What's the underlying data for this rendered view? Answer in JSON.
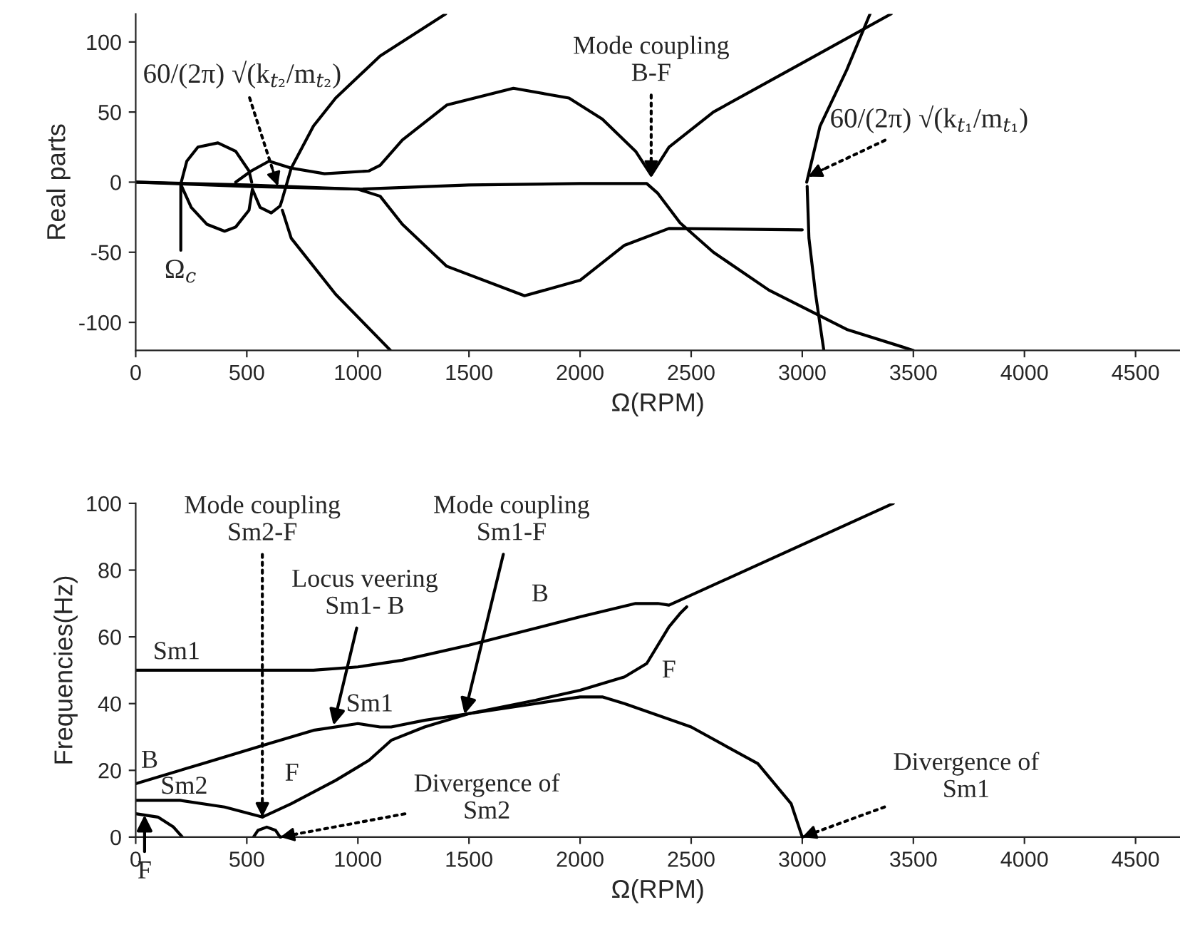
{
  "chart_data": [
    {
      "type": "line",
      "xlabel": "Ω(RPM)",
      "ylabel": "Real parts",
      "xlim": [
        0,
        4700
      ],
      "ylim": [
        -120,
        120
      ],
      "xticks": [
        0,
        500,
        1000,
        1500,
        2000,
        2500,
        3000,
        3500,
        4000,
        4500
      ],
      "yticks": [
        -100,
        -50,
        0,
        50,
        100
      ],
      "grid": false,
      "legend": false,
      "marker": "none",
      "line_style": "solid",
      "series": [
        {
          "color": "#000000",
          "x": [
            0,
            500,
            1000,
            1500,
            2000,
            2300,
            2350,
            2450,
            2600,
            2850,
            3200,
            3500
          ],
          "values": [
            0,
            -2,
            -5,
            -2,
            -1,
            -1,
            -8,
            -29,
            -50,
            -77,
            -105,
            -120
          ]
        },
        {
          "color": "#000000",
          "x": [
            0,
            500,
            1000,
            1100,
            1200,
            1400,
            1750,
            2000,
            2200,
            2400,
            3000
          ],
          "values": [
            0,
            -3,
            -5,
            -10,
            -30,
            -60,
            -81,
            -70,
            -45,
            -33,
            -34
          ]
        },
        {
          "color": "#000000",
          "x": [
            450,
            520,
            600,
            700,
            850,
            1050,
            1100,
            1200,
            1400,
            1700,
            1950,
            2100,
            2250,
            2320,
            2400,
            2600,
            3000,
            3400
          ],
          "values": [
            0,
            8,
            15,
            10,
            6,
            8,
            12,
            30,
            55,
            67,
            60,
            45,
            22,
            5,
            25,
            50,
            85,
            120
          ]
        },
        {
          "color": "#000000",
          "x": [
            205,
            230,
            280,
            370,
            450,
            510,
            522
          ],
          "values": [
            0,
            15,
            25,
            28,
            22,
            8,
            0
          ]
        },
        {
          "color": "#000000",
          "x": [
            207,
            250,
            320,
            400,
            450,
            510,
            525,
            560,
            610,
            650,
            660,
            700,
            800,
            900,
            1100,
            1395
          ],
          "values": [
            -3,
            -18,
            -30,
            -35,
            -32,
            -20,
            -5,
            -18,
            -22,
            -17,
            -12,
            10,
            40,
            60,
            90,
            120
          ]
        },
        {
          "color": "#000000",
          "x": [
            660,
            700,
            900,
            1147
          ],
          "values": [
            -20,
            -40,
            -80,
            -120
          ]
        },
        {
          "color": "#000000",
          "x": [
            3020,
            3080,
            3200,
            3305
          ],
          "values": [
            0,
            40,
            80,
            120
          ]
        },
        {
          "color": "#000000",
          "x": [
            3022,
            3030,
            3060,
            3097
          ],
          "values": [
            -3,
            -40,
            -80,
            -120
          ]
        }
      ],
      "annotations": [
        {
          "text": "60/(2π) √(k$_{t₂}$/m$_{t₂}$)",
          "x": 640,
          "y": -2.8
        },
        {
          "text": "Mode coupling\nB-F",
          "x": 2320,
          "y": 5
        },
        {
          "text": "60/(2π) √(k$_{t₁}$/m$_{t₁}$)",
          "x": 3026,
          "y": 4
        },
        {
          "text": "Ω$_{c}$",
          "x": 203,
          "y": -0.8
        }
      ]
    },
    {
      "type": "line",
      "xlabel": "Ω(RPM)",
      "ylabel": "Frequencies(Hz)",
      "xlim": [
        0,
        4700
      ],
      "ylim": [
        0,
        100
      ],
      "xticks": [
        0,
        500,
        1000,
        1500,
        2000,
        2500,
        3000,
        3500,
        4000,
        4500
      ],
      "yticks": [
        0,
        20,
        40,
        60,
        80,
        100
      ],
      "grid": false,
      "legend": false,
      "marker": "none",
      "line_style": "solid",
      "series": [
        {
          "color": "#000000",
          "x": [
            0,
            500,
            800,
            1000,
            1200,
            1500,
            2000,
            2250,
            2350,
            2400,
            2450,
            3410
          ],
          "values": [
            50,
            50,
            50,
            51,
            53,
            57.5,
            66,
            70,
            70,
            69.5,
            71,
            100
          ]
        },
        {
          "color": "#000000",
          "x": [
            0,
            300,
            600,
            800,
            1000,
            1100,
            1150,
            1300,
            1500,
            1800,
            2000,
            2100,
            2200,
            2500,
            2800,
            2950,
            3000
          ],
          "values": [
            16,
            22,
            28,
            32,
            34,
            33,
            33,
            35,
            37,
            40,
            42,
            42,
            40,
            33,
            22,
            10,
            0
          ]
        },
        {
          "color": "#000000",
          "x": [
            0,
            200,
            400,
            570,
            700,
            900,
            1050,
            1150,
            1300,
            1500,
            1800,
            2000,
            2200,
            2300,
            2400,
            2450,
            2480
          ],
          "values": [
            11,
            11,
            9,
            6,
            10,
            17,
            23,
            29,
            33,
            37,
            41,
            44,
            48,
            52,
            63,
            67,
            69
          ]
        },
        {
          "color": "#000000",
          "x": [
            0,
            100,
            170,
            210
          ],
          "values": [
            7,
            6,
            3,
            0
          ]
        },
        {
          "color": "#000000",
          "x": [
            530,
            550,
            590,
            630,
            650
          ],
          "values": [
            0,
            2,
            3,
            2,
            0
          ]
        }
      ],
      "annotations": [
        {
          "text": "Mode coupling\nSm2-F",
          "x": 570,
          "y": 6
        },
        {
          "text": "Locus veering\nSm1- B",
          "x": 890,
          "y": 33.5
        },
        {
          "text": "Mode coupling\nSm1-F",
          "x": 1480,
          "y": 36.8
        },
        {
          "text": "Divergence of\nSm2",
          "x": 650,
          "y": 0
        },
        {
          "text": "Divergence of\nSm1",
          "x": 3000,
          "y": 0
        },
        {
          "text": "F",
          "x": 40,
          "y": 6.6
        },
        {
          "text": "Sm1",
          "x": 120,
          "y": 50
        },
        {
          "text": "B",
          "x": 1820,
          "y": 63
        },
        {
          "text": "Sm1",
          "x": 1053,
          "y": 33.5
        },
        {
          "text": "B",
          "x": 50,
          "y": 17
        },
        {
          "text": "Sm2",
          "x": 250,
          "y": 10.5
        },
        {
          "text": "F",
          "x": 780,
          "y": 12.8
        },
        {
          "text": "F",
          "x": 2310,
          "y": 53.1
        }
      ]
    }
  ]
}
